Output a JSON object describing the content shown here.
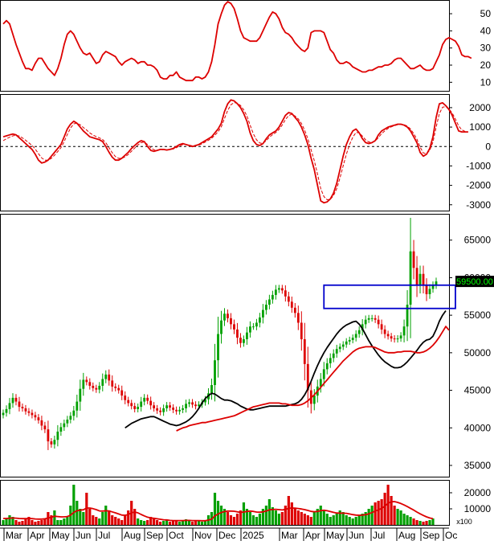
{
  "colors": {
    "up": "#00a000",
    "down": "#dd0000",
    "indicator": "#dd0000",
    "ma_black": "#000000",
    "ma_red": "#dd0000",
    "box": "#0000cc",
    "price_label_bg": "#000000",
    "price_label_fg": "#00ff00",
    "grid": "#000000"
  },
  "x_axis": {
    "labels": [
      "Mar",
      "Apr",
      "May",
      "Jun",
      "Jul",
      "Aug",
      "Sep",
      "Oct",
      "Nov",
      "Dec",
      "2025",
      "Mar",
      "Apr",
      "May",
      "Jun",
      "Jul",
      "Aug",
      "Sep",
      "Oc"
    ],
    "volume_unit": "x100"
  },
  "chart_data": [
    {
      "id": "rsi",
      "type": "line",
      "yticks": [
        "50",
        "40",
        "30",
        "20",
        "10"
      ],
      "ylim": [
        5,
        58
      ],
      "series": [
        {
          "values": [
            44,
            46,
            44,
            38,
            32,
            27,
            22,
            18,
            18,
            17,
            21,
            24,
            24,
            21,
            18,
            16,
            14,
            18,
            24,
            32,
            38,
            40,
            38,
            34,
            30,
            27,
            26,
            27,
            24,
            21,
            22,
            26,
            28,
            27,
            26,
            25,
            22,
            20,
            22,
            23,
            24,
            23,
            21,
            22,
            22,
            20,
            20,
            19,
            17,
            13,
            12,
            12,
            14,
            14,
            16,
            13,
            12,
            11,
            11,
            11,
            13,
            13,
            12,
            13,
            16,
            22,
            32,
            44,
            50,
            55,
            57,
            56,
            53,
            47,
            40,
            36,
            35,
            34,
            34,
            34,
            36,
            40,
            44,
            48,
            51,
            50,
            47,
            42,
            39,
            38,
            36,
            33,
            31,
            29,
            28,
            30,
            39,
            40,
            40,
            40,
            39,
            34,
            29,
            27,
            23,
            21,
            21,
            22,
            21,
            19,
            18,
            17,
            16,
            16,
            17,
            17,
            18,
            19,
            19,
            20,
            20,
            21,
            23,
            24,
            24,
            22,
            20,
            18,
            18,
            19,
            20,
            18,
            17,
            17,
            18,
            22,
            26,
            32,
            35,
            36,
            35,
            34,
            31,
            26,
            25,
            25,
            24
          ]
        }
      ]
    },
    {
      "id": "macd",
      "type": "line",
      "yticks": [
        "2000",
        "1000",
        "0",
        "-1000",
        "-2000",
        "-3000"
      ],
      "ylim": [
        -3300,
        2700
      ],
      "series": [
        {
          "name": "macd",
          "values": [
            500,
            550,
            600,
            640,
            600,
            450,
            300,
            150,
            0,
            -150,
            -400,
            -700,
            -850,
            -800,
            -700,
            -500,
            -300,
            -100,
            100,
            500,
            900,
            1150,
            1300,
            1200,
            1000,
            800,
            650,
            500,
            450,
            400,
            350,
            250,
            0,
            -300,
            -550,
            -700,
            -700,
            -600,
            -450,
            -300,
            -100,
            50,
            200,
            300,
            250,
            0,
            -200,
            -250,
            -200,
            -150,
            -150,
            -180,
            -150,
            -100,
            0,
            100,
            150,
            100,
            50,
            0,
            50,
            100,
            200,
            300,
            400,
            500,
            700,
            900,
            1200,
            1800,
            2200,
            2400,
            2350,
            2200,
            2000,
            1700,
            1300,
            700,
            300,
            100,
            50,
            150,
            400,
            600,
            700,
            800,
            1000,
            1300,
            1600,
            1750,
            1700,
            1500,
            1300,
            1000,
            600,
            100,
            -600,
            -1200,
            -2000,
            -2800,
            -2900,
            -2850,
            -2700,
            -2400,
            -1900,
            -1200,
            -500,
            100,
            500,
            800,
            900,
            700,
            400,
            200,
            150,
            200,
            300,
            600,
            800,
            900,
            1000,
            1050,
            1100,
            1150,
            1150,
            1100,
            1000,
            800,
            500,
            200,
            -300,
            -500,
            -400,
            -100,
            500,
            1500,
            2200,
            2250,
            2100,
            1900,
            1600,
            1200,
            800,
            750,
            750,
            750
          ],
          "style": "solid"
        },
        {
          "name": "signal",
          "values": [
            300,
            400,
            480,
            550,
            580,
            540,
            440,
            320,
            190,
            50,
            -130,
            -370,
            -590,
            -700,
            -700,
            -610,
            -450,
            -260,
            -60,
            250,
            620,
            950,
            1170,
            1200,
            1120,
            980,
            850,
            700,
            590,
            510,
            440,
            360,
            190,
            -70,
            -320,
            -520,
            -610,
            -610,
            -530,
            -410,
            -240,
            -80,
            80,
            200,
            230,
            100,
            -60,
            -170,
            -190,
            -170,
            -160,
            -170,
            -160,
            -130,
            -60,
            30,
            100,
            100,
            70,
            30,
            40,
            70,
            140,
            230,
            320,
            420,
            580,
            760,
            1010,
            1440,
            1860,
            2150,
            2260,
            2230,
            2110,
            1890,
            1580,
            1100,
            650,
            340,
            180,
            160,
            300,
            480,
            610,
            720,
            880,
            1110,
            1380,
            1590,
            1660,
            1570,
            1420,
            1180,
            840,
            400,
            -170,
            -730,
            -1420,
            -2170,
            -2580,
            -2740,
            -2720,
            -2530,
            -2170,
            -1630,
            -1000,
            -400,
            100,
            480,
            720,
            710,
            530,
            340,
            230,
            220,
            270,
            460,
            660,
            810,
            930,
            1010,
            1070,
            1120,
            1140,
            1120,
            1050,
            900,
            660,
            380,
            -30,
            -330,
            -370,
            -200,
            230,
            1000,
            1700,
            2020,
            2060,
            1940,
            1720,
            1410,
            1060,
            860,
            780
          ],
          "style": "dashed"
        }
      ]
    },
    {
      "id": "price",
      "type": "candlestick",
      "yticks": [
        "65000",
        "60000",
        "55000",
        "50000",
        "45000",
        "40000",
        "35000"
      ],
      "ylim": [
        33500,
        68500
      ],
      "last_price_label": "59500.00",
      "box": {
        "x_range": [
          100,
          141
        ],
        "y_range": [
          55900,
          59000
        ]
      },
      "close": [
        42000,
        42500,
        43300,
        44000,
        43500,
        42800,
        42600,
        42200,
        42000,
        41700,
        41400,
        41000,
        40300,
        39800,
        38200,
        37800,
        38400,
        39500,
        40100,
        40600,
        41100,
        41600,
        42300,
        43500,
        45200,
        46400,
        46100,
        45600,
        45300,
        45100,
        45600,
        46500,
        47100,
        46300,
        45500,
        45300,
        45000,
        44300,
        43700,
        43300,
        42900,
        42500,
        42800,
        43500,
        44000,
        43600,
        43000,
        42600,
        42300,
        42100,
        42600,
        43000,
        42700,
        42400,
        42200,
        42400,
        42600,
        43200,
        43400,
        43100,
        42900,
        43100,
        43400,
        43800,
        44600,
        45700,
        49000,
        52500,
        54300,
        55200,
        54600,
        53800,
        53100,
        52000,
        51300,
        51800,
        52700,
        53500,
        53500,
        54000,
        54700,
        55700,
        56400,
        57100,
        57700,
        58400,
        58600,
        58300,
        57500,
        56800,
        56000,
        55300,
        54000,
        51800,
        48500,
        45000,
        43200,
        44300,
        45500,
        46500,
        47800,
        48600,
        49300,
        49900,
        50500,
        50800,
        51100,
        51500,
        51700,
        52000,
        52500,
        53000,
        53800,
        54400,
        54600,
        54600,
        54400,
        53800,
        53100,
        52500,
        52200,
        51900,
        51800,
        51900,
        52300,
        53500,
        56400,
        63500,
        61300,
        59000,
        60500,
        59000,
        57800,
        58500,
        59000,
        59500
      ],
      "series": [
        {
          "name": "ma_black",
          "values": [
            40000,
            40300,
            40600,
            40800,
            41000,
            41200,
            41300,
            41400,
            41500,
            41500,
            41300,
            41100,
            40900,
            40700,
            40500,
            40400,
            40300,
            40400,
            40600,
            40800,
            41100,
            41500,
            42000,
            42600,
            43300,
            43900,
            44300,
            44600,
            44500,
            44200,
            43900,
            43700,
            43700,
            43600,
            43400,
            43200,
            42900,
            42700,
            42500,
            42400,
            42400,
            42500,
            42600,
            42700,
            42800,
            42900,
            42900,
            42900,
            42900,
            42900,
            42900,
            43000,
            43100,
            43200,
            43400,
            43800,
            44400,
            45200,
            46200,
            47300,
            48300,
            49200,
            50000,
            50700,
            51300,
            51900,
            52500,
            53000,
            53400,
            53700,
            53900,
            54100,
            54200,
            53800,
            53200,
            52400,
            51600,
            50900,
            50300,
            49700,
            49200,
            48800,
            48500,
            48200,
            48000,
            48000,
            48100,
            48400,
            48800,
            49300,
            49800,
            50300,
            50900,
            51400,
            51700,
            51800,
            52200,
            53100,
            54200,
            55000,
            55600
          ],
          "x_start": 38,
          "color": "#000000"
        },
        {
          "name": "ma_red",
          "values": [
            39600,
            39800,
            40000,
            40100,
            40300,
            40400,
            40500,
            40600,
            40700,
            40700,
            40800,
            40900,
            41000,
            41100,
            41200,
            41300,
            41400,
            41500,
            41600,
            41800,
            42000,
            42200,
            42400,
            42600,
            42800,
            42900,
            43000,
            43100,
            43200,
            43300,
            43300,
            43300,
            43300,
            43200,
            43200,
            43100,
            43000,
            43000,
            43000,
            43100,
            43300,
            43600,
            44000,
            44400,
            44900,
            45400,
            45900,
            46400,
            46900,
            47400,
            47900,
            48400,
            48900,
            49300,
            49700,
            50100,
            50400,
            50600,
            50700,
            50800,
            50800,
            50800,
            50700,
            50500,
            50300,
            50100,
            50000,
            50000,
            50000,
            50100,
            50100,
            50200,
            50200,
            50200,
            50100,
            50000,
            50000,
            50100,
            50300,
            50600,
            51000,
            51500,
            52100,
            52800,
            53500,
            53000
          ],
          "x_start": 54,
          "color": "#dd0000"
        }
      ]
    },
    {
      "id": "volume",
      "type": "bar",
      "yticks": [
        "20000",
        "10000"
      ],
      "ylim": [
        0,
        28000
      ],
      "values": [
        3000,
        4000,
        6000,
        5000,
        3000,
        2000,
        2500,
        4000,
        5000,
        3000,
        2000,
        2500,
        3000,
        4000,
        8000,
        6000,
        9000,
        3000,
        3000,
        4000,
        5000,
        12000,
        25000,
        15000,
        10000,
        8000,
        20000,
        10000,
        6000,
        5000,
        4000,
        8000,
        12000,
        9000,
        6000,
        5000,
        4000,
        3000,
        6000,
        9000,
        15000,
        10000,
        4000,
        3000,
        2500,
        3000,
        5000,
        4000,
        3000,
        2000,
        2500,
        3000,
        2000,
        2500,
        3000,
        2000,
        2500,
        3500,
        3000,
        2000,
        2500,
        3000,
        2000,
        2500,
        6000,
        8000,
        20000,
        15000,
        12000,
        10000,
        8000,
        6000,
        5000,
        7000,
        9000,
        14000,
        10000,
        8000,
        6000,
        5000,
        7000,
        10000,
        12000,
        16000,
        11000,
        9000,
        7000,
        8000,
        12000,
        18000,
        14000,
        10000,
        9000,
        8000,
        7000,
        6000,
        5000,
        8000,
        10000,
        12000,
        9000,
        7000,
        5000,
        6000,
        7000,
        9000,
        8000,
        6000,
        5000,
        4000,
        5000,
        6000,
        7000,
        8000,
        10000,
        12000,
        14000,
        15000,
        16000,
        20000,
        25000,
        18000,
        12000,
        10000,
        9000,
        7000,
        6000,
        5000,
        4000,
        3000,
        2500,
        2000,
        2500,
        3000,
        4000
      ],
      "series": [
        {
          "name": "vol_ma",
          "values": [
            4000,
            4000,
            4200,
            4300,
            4200,
            4000,
            3900,
            3900,
            4000,
            3900,
            3700,
            3600,
            3600,
            3800,
            4300,
            4700,
            5400,
            5200,
            5000,
            5000,
            5200,
            6000,
            7800,
            8800,
            9200,
            9400,
            10500,
            10500,
            10100,
            9500,
            8700,
            8600,
            8800,
            8700,
            8100,
            7500,
            6800,
            6100,
            6000,
            6400,
            7500,
            8000,
            7500,
            6500,
            5600,
            4800,
            4300,
            4100,
            3800,
            3500,
            3200,
            3100,
            2800,
            2700,
            2700,
            2700,
            2700,
            2800,
            2800,
            2700,
            2700,
            2700,
            2600,
            2600,
            3000,
            3600,
            5600,
            6800,
            7700,
            8300,
            8600,
            8600,
            8500,
            8100,
            7800,
            8000,
            8400,
            8600,
            8400,
            8000,
            7900,
            8100,
            8600,
            9400,
            9600,
            9700,
            9500,
            9300,
            9600,
            10300,
            10500,
            10400,
            10200,
            9900,
            9500,
            9000,
            8400,
            8200,
            8400,
            8900,
            9100,
            8800,
            8300,
            7800,
            7400,
            7300,
            7300,
            7200,
            6800,
            6400,
            6100,
            6000,
            6100,
            6400,
            6900,
            7700,
            8600,
            9400,
            10300,
            11700,
            13500,
            14400,
            14500,
            14000,
            13300,
            12400,
            11400,
            10300,
            9200,
            8000,
            6900,
            5900,
            5000,
            4300,
            3900
          ]
        }
      ]
    }
  ]
}
